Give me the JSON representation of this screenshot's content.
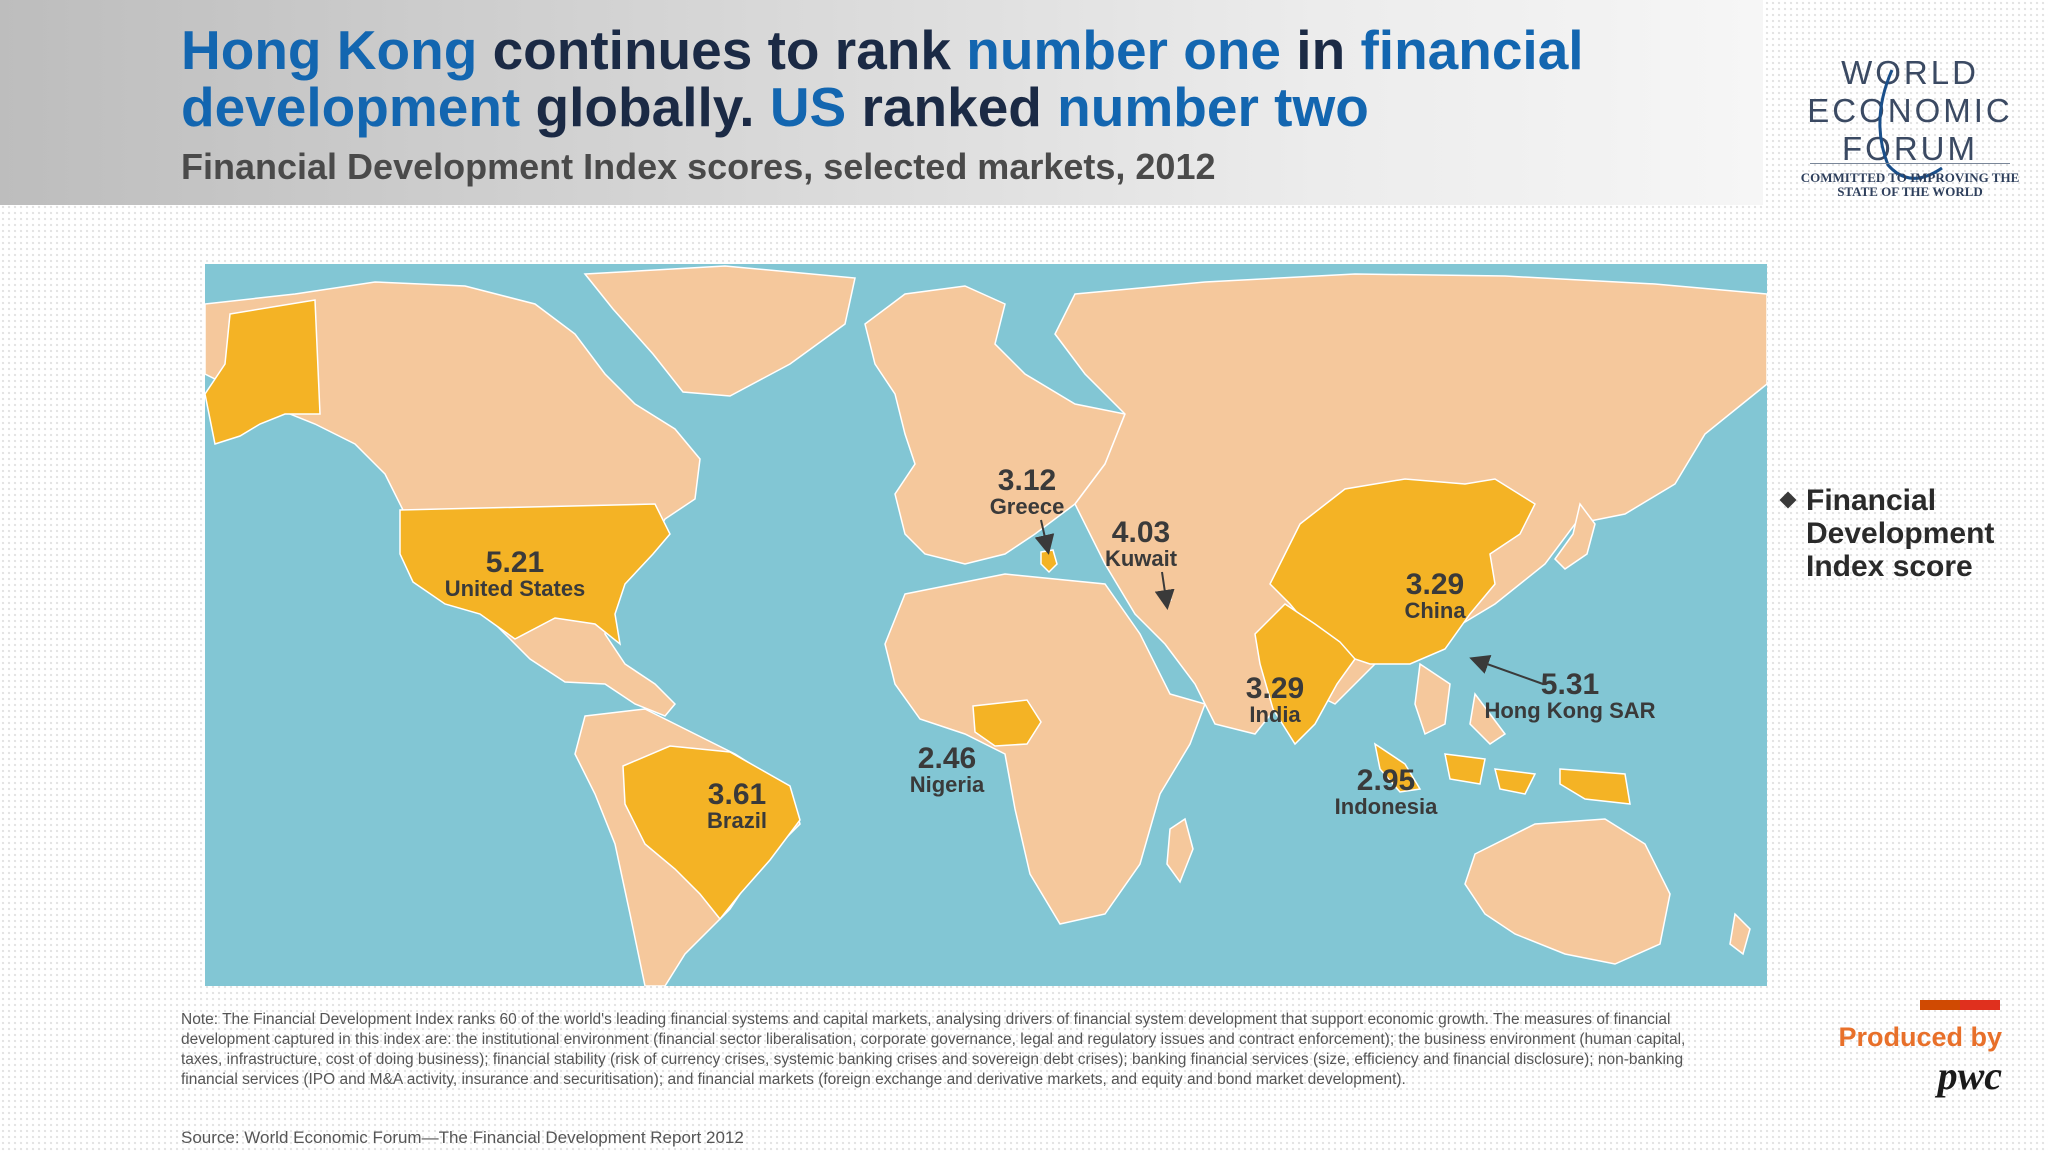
{
  "header": {
    "title_segments": [
      {
        "text": "Hong Kong",
        "highlight": true
      },
      {
        "text": " continues to rank ",
        "highlight": false
      },
      {
        "text": "number one",
        "highlight": true
      },
      {
        "text": " in ",
        "highlight": false
      },
      {
        "text": "financial development",
        "highlight": true
      },
      {
        "text": " globally. ",
        "highlight": false
      },
      {
        "text": "US",
        "highlight": true
      },
      {
        "text": " ranked ",
        "highlight": false
      },
      {
        "text": "number two",
        "highlight": true
      }
    ],
    "subtitle": "Financial Development Index scores, selected markets, 2012"
  },
  "logo": {
    "lines": [
      "WORLD",
      "ECONOMIC",
      "FORUM"
    ],
    "tagline": "COMMITTED TO IMPROVING THE STATE OF THE WORLD"
  },
  "markets": [
    {
      "id": "hong-kong",
      "score": "5.31",
      "name": "Hong Kong SAR"
    },
    {
      "id": "united-states",
      "score": "5.21",
      "name": "United States"
    },
    {
      "id": "kuwait",
      "score": "4.03",
      "name": "Kuwait"
    },
    {
      "id": "brazil",
      "score": "3.61",
      "name": "Brazil"
    },
    {
      "id": "china",
      "score": "3.29",
      "name": "China"
    },
    {
      "id": "india",
      "score": "3.29",
      "name": "India"
    },
    {
      "id": "greece",
      "score": "3.12",
      "name": "Greece"
    },
    {
      "id": "indonesia",
      "score": "2.95",
      "name": "Indonesia"
    },
    {
      "id": "nigeria",
      "score": "2.46",
      "name": "Nigeria"
    }
  ],
  "legend": {
    "label": "Financial Development Index score"
  },
  "colors": {
    "ocean": "#82c6d4",
    "land": "#f5c89c",
    "highlight": "#f4b325",
    "title_dark": "#1b2a45",
    "title_blue": "#1366b0",
    "pwc_orange": "#e8702a"
  },
  "note": "Note: The Financial Development Index ranks 60 of the world's leading financial systems and capital markets, analysing drivers of financial system development that support economic growth. The measures of financial development captured in this index are: the institutional environment (financial sector liberalisation, corporate governance, legal and regulatory issues and contract enforcement); the business environment (human capital, taxes, infrastructure, cost of doing business); financial stability (risk of currency crises, systemic banking crises and sovereign debt crises); banking financial services (size, efficiency and financial disclosure); non-banking financial services (IPO and M&A activity, insurance and securitisation); and financial markets (foreign exchange and derivative markets, and equity and bond market development).",
  "source": "Source: World Economic Forum—The Financial Development Report 2012",
  "credit": {
    "produced_by": "Produced by",
    "brand": "pwc"
  }
}
